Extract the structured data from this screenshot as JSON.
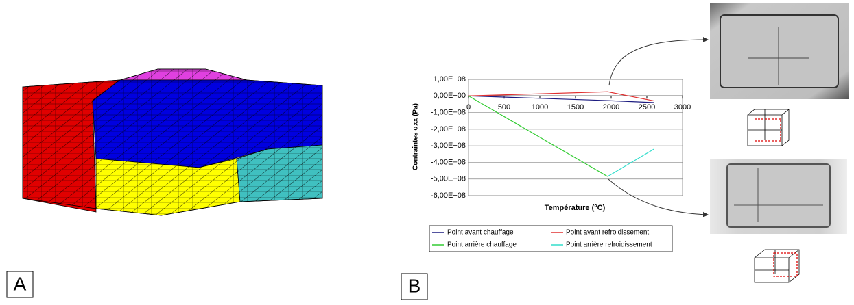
{
  "panels": [
    "A",
    "B"
  ],
  "chart_data": {
    "type": "line",
    "ylabel": "Contraintes σxx (Pa)",
    "xlabel": "Température (°C)",
    "x": [
      0,
      1950,
      2600
    ],
    "series": [
      {
        "name": "Point avant chauffage",
        "color": "#1c1c80",
        "values": [
          0,
          -28000000,
          -40000000
        ]
      },
      {
        "name": "Point avant refroidissement",
        "color": "#e03030",
        "values": [
          0,
          25000000,
          -30000000
        ]
      },
      {
        "name": "Point arrière chauffage",
        "color": "#33cc33",
        "values": [
          0,
          -485000000,
          null
        ]
      },
      {
        "name": "Point arrière refroidissement",
        "color": "#33ddcc",
        "values": [
          null,
          -485000000,
          -320000000
        ]
      }
    ],
    "xlim": [
      0,
      3000
    ],
    "xticks": [
      0,
      500,
      1000,
      1500,
      2000,
      2500,
      3000
    ],
    "ylim": [
      -600000000,
      100000000
    ],
    "yticks": [
      {
        "value": 100000000,
        "label": "1,00E+08"
      },
      {
        "value": 0,
        "label": "0,00E+00"
      },
      {
        "value": -100000000,
        "label": "-1,00E+08"
      },
      {
        "value": -200000000,
        "label": "-2,00E+08"
      },
      {
        "value": -300000000,
        "label": "-3,00E+08"
      },
      {
        "value": -400000000,
        "label": "-4,00E+08"
      },
      {
        "value": -500000000,
        "label": "-5,00E+08"
      },
      {
        "value": -600000000,
        "label": "-6,00E+08"
      }
    ],
    "grid": true
  }
}
